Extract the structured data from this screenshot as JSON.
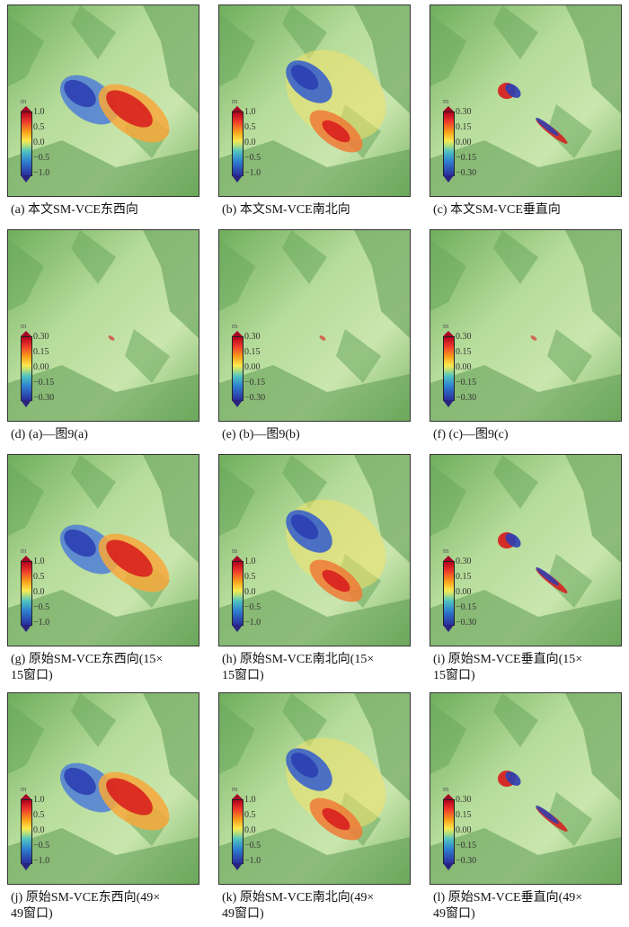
{
  "panels": [
    {
      "caption": "(a) 本文SM-VCE东西向",
      "scale": [
        "1.0",
        "0.5",
        "0.0",
        "−0.5",
        "−1.0"
      ],
      "unit": "m",
      "pattern": "ew"
    },
    {
      "caption": "(b) 本文SM-VCE南北向",
      "scale": [
        "1.0",
        "0.5",
        "0.0",
        "−0.5",
        "−1.0"
      ],
      "unit": "m",
      "pattern": "ns"
    },
    {
      "caption": "(c) 本文SM-VCE垂直向",
      "scale": [
        "0.30",
        "0.15",
        "0.00",
        "−0.15",
        "−0.30"
      ],
      "unit": "m",
      "pattern": "ud"
    },
    {
      "caption": "(d) (a)—图9(a)",
      "scale": [
        "0.30",
        "0.15",
        "0.00",
        "−0.15",
        "−0.30"
      ],
      "unit": "m",
      "pattern": "diff"
    },
    {
      "caption": "(e) (b)—图9(b)",
      "scale": [
        "0.30",
        "0.15",
        "0.00",
        "−0.15",
        "−0.30"
      ],
      "unit": "m",
      "pattern": "diff"
    },
    {
      "caption": "(f) (c)—图9(c)",
      "scale": [
        "0.30",
        "0.15",
        "0.00",
        "−0.15",
        "−0.30"
      ],
      "unit": "m",
      "pattern": "diff"
    },
    {
      "caption": "(g) 原始SM-VCE东西向(15×\n15窗口)",
      "scale": [
        "1.0",
        "0.5",
        "0.0",
        "−0.5",
        "−1.0"
      ],
      "unit": "m",
      "pattern": "ew"
    },
    {
      "caption": "(h) 原始SM-VCE南北向(15×\n15窗口)",
      "scale": [
        "1.0",
        "0.5",
        "0.0",
        "−0.5",
        "−1.0"
      ],
      "unit": "m",
      "pattern": "ns"
    },
    {
      "caption": "(i) 原始SM-VCE垂直向(15×\n15窗口)",
      "scale": [
        "0.30",
        "0.15",
        "0.00",
        "−0.15",
        "−0.30"
      ],
      "unit": "m",
      "pattern": "ud"
    },
    {
      "caption": "(j) 原始SM-VCE东西向(49×\n49窗口)",
      "scale": [
        "1.0",
        "0.5",
        "0.0",
        "−0.5",
        "−1.0"
      ],
      "unit": "m",
      "pattern": "ew"
    },
    {
      "caption": "(k) 原始SM-VCE南北向(49×\n49窗口)",
      "scale": [
        "1.0",
        "0.5",
        "0.0",
        "−0.5",
        "−1.0"
      ],
      "unit": "m",
      "pattern": "ns"
    },
    {
      "caption": "(l) 原始SM-VCE垂直向(49×\n49窗口)",
      "scale": [
        "0.30",
        "0.15",
        "0.00",
        "−0.15",
        "−0.30"
      ],
      "unit": "m",
      "pattern": "ud"
    }
  ],
  "colors": {
    "terrain_light": "#a9d48f",
    "terrain_dark": "#5f9a55",
    "positive": "#d7191c",
    "negative": "#2c3fb3",
    "neutral": "#f5e05a"
  }
}
